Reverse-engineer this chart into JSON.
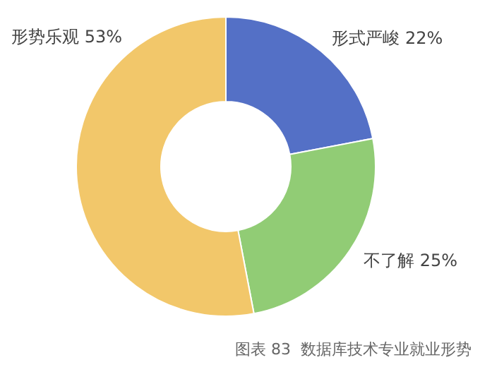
{
  "chart_data": {
    "type": "donut",
    "categories": [
      "形式严峻",
      "不了解",
      "形势乐观"
    ],
    "values": [
      22,
      25,
      53
    ],
    "colors": [
      "#5470c6",
      "#91cc75",
      "#f2c76a"
    ],
    "value_labels": [
      "22%",
      "25%",
      "53%"
    ],
    "annotations": [
      "图表 83  数据库技术专业就业形势"
    ],
    "legend": false
  }
}
